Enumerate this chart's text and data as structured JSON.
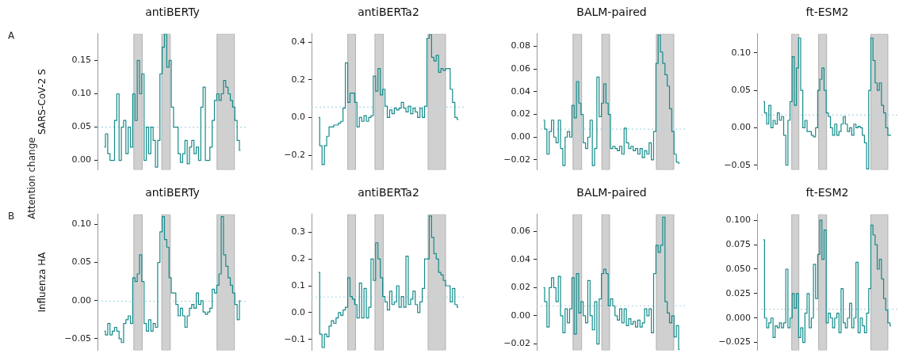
{
  "chart_data": [
    {
      "type": "step",
      "title": "antiBERTy",
      "ylabel": "SARS-CoV-2 S",
      "annotations": [
        "A",
        "Attention change"
      ],
      "color": "#138a8a",
      "tick_labels": "y",
      "grid": false,
      "ylim": [
        -0.014,
        0.19
      ],
      "yticks": [
        {
          "value": 0,
          "label": "0.00"
        },
        {
          "value": 0.05,
          "label": "0.05"
        },
        {
          "value": 0.1,
          "label": "0.10"
        },
        {
          "value": 0.15,
          "label": "0.15"
        }
      ],
      "ref_lines": [
        {
          "axis": "y",
          "value": 0.05,
          "color": "#add8e6",
          "line_style": "dotted"
        }
      ],
      "categories": [
        null,
        null,
        null,
        null,
        null,
        null,
        null,
        null,
        null,
        null,
        null,
        null,
        null,
        null,
        null,
        null,
        null,
        null,
        null,
        null,
        null,
        null,
        null,
        null,
        null,
        null,
        null,
        null,
        null,
        null,
        null,
        null,
        null,
        null,
        null,
        null,
        null,
        null,
        null,
        null,
        null,
        null,
        null,
        null,
        null,
        null,
        null,
        null,
        null,
        null,
        null,
        null,
        null,
        null,
        null,
        null,
        null,
        null,
        null,
        null,
        null
      ],
      "values": [
        0.02,
        0.04,
        0.01,
        0.0,
        0.0,
        0.06,
        0.1,
        0.0,
        0.05,
        0.06,
        0.01,
        0.05,
        0.02,
        0.1,
        0.06,
        0.15,
        0.1,
        0.13,
        0.0,
        0.05,
        0.01,
        0.05,
        0.03,
        -0.01,
        0.03,
        0.13,
        0.17,
        0.19,
        0.14,
        0.15,
        0.08,
        0.05,
        0.05,
        0.01,
        -0.003,
        0.01,
        0.03,
        -0.005,
        0.02,
        0.03,
        0.01,
        0.02,
        0.0,
        0.08,
        0.11,
        0.0,
        0.0,
        0.02,
        0.06,
        0.09,
        0.1,
        0.09,
        0.1,
        0.12,
        0.11,
        0.1,
        0.09,
        0.08,
        0.06,
        0.03,
        0.015
      ]
    },
    {
      "type": "step",
      "title": "antiBERTa2",
      "color": "#138a8a",
      "tick_labels": "y",
      "grid": false,
      "ylim": [
        -0.277,
        0.444
      ],
      "yticks": [
        {
          "value": -0.2,
          "label": "−0.2"
        },
        {
          "value": 0,
          "label": "0.0"
        },
        {
          "value": 0.2,
          "label": "0.2"
        },
        {
          "value": 0.4,
          "label": "0.4"
        }
      ],
      "ref_lines": [
        {
          "axis": "y",
          "value": 0.055,
          "color": "#add8e6",
          "line_style": "dotted"
        }
      ],
      "categories": [
        null,
        null,
        null,
        null,
        null,
        null,
        null,
        null,
        null,
        null,
        null,
        null,
        null,
        null,
        null,
        null,
        null,
        null,
        null,
        null,
        null,
        null,
        null,
        null,
        null,
        null,
        null,
        null,
        null,
        null,
        null,
        null,
        null,
        null,
        null,
        null,
        null,
        null,
        null,
        null,
        null,
        null,
        null,
        null,
        null,
        null,
        null,
        null,
        null,
        null,
        null,
        null,
        null,
        null,
        null,
        null,
        null,
        null,
        null,
        null,
        null
      ],
      "values": [
        0.0,
        -0.15,
        -0.25,
        -0.15,
        -0.1,
        -0.05,
        -0.05,
        -0.04,
        -0.04,
        -0.03,
        -0.02,
        0.05,
        0.29,
        0.08,
        0.13,
        0.13,
        0.08,
        -0.05,
        0.0,
        -0.02,
        0.01,
        -0.02,
        0.0,
        0.01,
        0.22,
        0.14,
        0.26,
        0.12,
        0.15,
        0.06,
        0.0,
        0.04,
        0.02,
        0.05,
        0.04,
        0.05,
        0.08,
        0.05,
        0.03,
        0.06,
        0.02,
        0.05,
        0.03,
        0.0,
        0.05,
        0.0,
        0.06,
        0.42,
        0.44,
        0.32,
        0.3,
        0.33,
        0.24,
        0.26,
        0.25,
        0.26,
        0.26,
        0.15,
        0.08,
        0.0,
        -0.01
      ]
    },
    {
      "type": "step",
      "title": "BALM-paired",
      "color": "#138a8a",
      "tick_labels": "y",
      "grid": false,
      "ylim": [
        -0.0287,
        0.091
      ],
      "yticks": [
        {
          "value": -0.02,
          "label": "−0.02"
        },
        {
          "value": 0,
          "label": "0.00"
        },
        {
          "value": 0.02,
          "label": "0.02"
        },
        {
          "value": 0.04,
          "label": "0.04"
        },
        {
          "value": 0.06,
          "label": "0.06"
        },
        {
          "value": 0.08,
          "label": "0.08"
        }
      ],
      "ref_lines": [
        {
          "axis": "y",
          "value": 0.007,
          "color": "#add8e6",
          "line_style": "dotted"
        }
      ],
      "categories": [
        null,
        null,
        null,
        null,
        null,
        null,
        null,
        null,
        null,
        null,
        null,
        null,
        null,
        null,
        null,
        null,
        null,
        null,
        null,
        null,
        null,
        null,
        null,
        null,
        null,
        null,
        null,
        null,
        null,
        null,
        null,
        null,
        null,
        null,
        null,
        null,
        null,
        null,
        null,
        null,
        null,
        null,
        null,
        null,
        null,
        null,
        null,
        null,
        null,
        null,
        null,
        null,
        null,
        null,
        null,
        null,
        null,
        null,
        null,
        null,
        null
      ],
      "values": [
        0.015,
        0.007,
        -0.015,
        0.005,
        0.015,
        0.0,
        -0.005,
        0.015,
        -0.01,
        -0.025,
        0.0,
        0.005,
        0.0,
        0.028,
        0.017,
        0.049,
        0.03,
        0.02,
        -0.005,
        -0.01,
        0.0,
        0.015,
        -0.025,
        -0.01,
        0.053,
        0.018,
        0.03,
        0.047,
        0.03,
        0.02,
        -0.01,
        -0.008,
        -0.01,
        -0.012,
        -0.008,
        -0.015,
        0.008,
        -0.005,
        -0.01,
        -0.008,
        -0.012,
        -0.01,
        -0.015,
        -0.01,
        -0.018,
        -0.012,
        -0.015,
        -0.005,
        -0.02,
        0.005,
        0.065,
        0.09,
        0.075,
        0.065,
        0.055,
        0.045,
        0.025,
        0.005,
        -0.015,
        -0.022,
        -0.023
      ]
    },
    {
      "type": "step",
      "title": "ft-ESM2",
      "color": "#138a8a",
      "tick_labels": "y",
      "grid": false,
      "ylim": [
        -0.056,
        0.1255
      ],
      "yticks": [
        {
          "value": -0.05,
          "label": "−0.05"
        },
        {
          "value": 0,
          "label": "0.00"
        },
        {
          "value": 0.05,
          "label": "0.05"
        },
        {
          "value": 0.1,
          "label": "0.10"
        }
      ],
      "ref_lines": [
        {
          "axis": "y",
          "value": 0.017,
          "color": "#add8e6",
          "line_style": "dotted"
        }
      ],
      "categories": [
        null,
        null,
        null,
        null,
        null,
        null,
        null,
        null,
        null,
        null,
        null,
        null,
        null,
        null,
        null,
        null,
        null,
        null,
        null,
        null,
        null,
        null,
        null,
        null,
        null,
        null,
        null,
        null,
        null,
        null,
        null,
        null,
        null,
        null,
        null,
        null,
        null,
        null,
        null,
        null,
        null,
        null,
        null,
        null,
        null,
        null,
        null,
        null,
        null,
        null,
        null,
        null,
        null,
        null,
        null,
        null,
        null,
        null,
        null,
        null,
        null
      ],
      "values": [
        0.035,
        0.02,
        0.005,
        0.03,
        0.0,
        0.01,
        0.005,
        0.02,
        0.01,
        0.015,
        -0.01,
        -0.05,
        0.01,
        0.035,
        0.095,
        0.03,
        0.08,
        0.12,
        0.05,
        0.0,
        0.01,
        -0.005,
        -0.005,
        -0.01,
        -0.012,
        0.0,
        0.05,
        0.065,
        0.08,
        0.05,
        0.02,
        0.015,
        0.0,
        -0.01,
        0.005,
        -0.01,
        -0.005,
        0.005,
        0.015,
        0.005,
        -0.005,
        0.0,
        -0.01,
        0.005,
        0.0,
        0.002,
        0.0,
        -0.01,
        -0.02,
        -0.055,
        0.05,
        0.12,
        0.09,
        0.06,
        0.05,
        0.06,
        0.03,
        0.02,
        0.0,
        -0.01,
        -0.01
      ]
    },
    {
      "type": "step",
      "title": "antiBERTy",
      "ylabel": "Influenza HA",
      "annotations": [
        "B"
      ],
      "color": "#138a8a",
      "tick_labels": "y",
      "grid": false,
      "ylim": [
        -0.065,
        0.113
      ],
      "yticks": [
        {
          "value": -0.05,
          "label": "−0.05"
        },
        {
          "value": 0,
          "label": "0.00"
        },
        {
          "value": 0.05,
          "label": "0.05"
        },
        {
          "value": 0.1,
          "label": "0.10"
        }
      ],
      "ref_lines": [
        {
          "axis": "y",
          "value": -0.001,
          "color": "#add8e6",
          "line_style": "dotted"
        }
      ],
      "categories": [
        null,
        null,
        null,
        null,
        null,
        null,
        null,
        null,
        null,
        null,
        null,
        null,
        null,
        null,
        null,
        null,
        null,
        null,
        null,
        null,
        null,
        null,
        null,
        null,
        null,
        null,
        null,
        null,
        null,
        null,
        null,
        null,
        null,
        null,
        null,
        null,
        null,
        null,
        null,
        null,
        null,
        null,
        null,
        null,
        null,
        null,
        null,
        null,
        null,
        null,
        null,
        null,
        null,
        null,
        null,
        null,
        null,
        null,
        null,
        null,
        null
      ],
      "values": [
        -0.04,
        -0.045,
        -0.03,
        -0.045,
        -0.04,
        -0.035,
        -0.04,
        -0.05,
        -0.055,
        -0.03,
        -0.025,
        -0.02,
        -0.03,
        0.03,
        0.025,
        0.035,
        0.06,
        0.025,
        -0.03,
        -0.04,
        -0.025,
        -0.04,
        -0.03,
        -0.035,
        0.05,
        0.09,
        0.11,
        0.08,
        0.07,
        0.03,
        0.01,
        0.01,
        -0.005,
        -0.02,
        -0.01,
        -0.02,
        -0.035,
        -0.02,
        -0.01,
        -0.005,
        -0.01,
        0.01,
        -0.005,
        0.0,
        -0.015,
        -0.018,
        -0.015,
        -0.01,
        0.015,
        0.01,
        0.02,
        0.035,
        0.11,
        0.06,
        0.045,
        0.03,
        0.02,
        0.01,
        -0.005,
        -0.025,
        0.0
      ]
    },
    {
      "type": "step",
      "title": "antiBERTa2",
      "color": "#138a8a",
      "tick_labels": "y",
      "grid": false,
      "ylim": [
        -0.14,
        0.366
      ],
      "yticks": [
        {
          "value": -0.1,
          "label": "−0.1"
        },
        {
          "value": 0,
          "label": "0.0"
        },
        {
          "value": 0.1,
          "label": "0.1"
        },
        {
          "value": 0.2,
          "label": "0.2"
        },
        {
          "value": 0.3,
          "label": "0.3"
        }
      ],
      "ref_lines": [
        {
          "axis": "y",
          "value": 0.058,
          "color": "#add8e6",
          "line_style": "dotted"
        }
      ],
      "categories": [
        null,
        null,
        null,
        null,
        null,
        null,
        null,
        null,
        null,
        null,
        null,
        null,
        null,
        null,
        null,
        null,
        null,
        null,
        null,
        null,
        null,
        null,
        null,
        null,
        null,
        null,
        null,
        null,
        null,
        null,
        null,
        null,
        null,
        null,
        null,
        null,
        null,
        null,
        null,
        null,
        null,
        null,
        null,
        null,
        null,
        null,
        null,
        null,
        null,
        null,
        null,
        null,
        null,
        null,
        null,
        null,
        null,
        null,
        null,
        null,
        null
      ],
      "values": [
        0.15,
        -0.08,
        -0.13,
        -0.08,
        -0.09,
        -0.05,
        -0.03,
        -0.04,
        -0.02,
        0.0,
        -0.01,
        0.01,
        0.02,
        0.13,
        0.06,
        0.05,
        0.03,
        -0.02,
        0.11,
        -0.02,
        0.09,
        -0.02,
        0.02,
        0.2,
        0.12,
        0.26,
        0.2,
        0.13,
        0.06,
        0.04,
        0.01,
        0.08,
        0.03,
        0.04,
        0.1,
        0.02,
        0.06,
        0.02,
        0.21,
        0.03,
        0.05,
        0.08,
        0.03,
        0.0,
        0.04,
        0.09,
        0.2,
        0.2,
        0.36,
        0.28,
        0.22,
        0.2,
        0.15,
        0.14,
        0.12,
        0.1,
        0.1,
        0.04,
        0.09,
        0.03,
        0.02
      ]
    },
    {
      "type": "step",
      "title": "BALM-paired",
      "color": "#138a8a",
      "tick_labels": "y",
      "grid": false,
      "ylim": [
        -0.0244,
        0.072
      ],
      "yticks": [
        {
          "value": -0.02,
          "label": "−0.02"
        },
        {
          "value": 0,
          "label": "0.00"
        },
        {
          "value": 0.02,
          "label": "0.02"
        },
        {
          "value": 0.04,
          "label": "0.04"
        },
        {
          "value": 0.06,
          "label": "0.06"
        }
      ],
      "ref_lines": [
        {
          "axis": "y",
          "value": 0.007,
          "color": "#add8e6",
          "line_style": "dotted"
        }
      ],
      "categories": [
        null,
        null,
        null,
        null,
        null,
        null,
        null,
        null,
        null,
        null,
        null,
        null,
        null,
        null,
        null,
        null,
        null,
        null,
        null,
        null,
        null,
        null,
        null,
        null,
        null,
        null,
        null,
        null,
        null,
        null,
        null,
        null,
        null,
        null,
        null,
        null,
        null,
        null,
        null,
        null,
        null,
        null,
        null,
        null,
        null,
        null,
        null,
        null,
        null,
        null,
        null,
        null,
        null,
        null,
        null,
        null,
        null,
        null,
        null,
        null,
        null
      ],
      "values": [
        0.02,
        0.01,
        -0.008,
        0.02,
        0.027,
        0.02,
        0.01,
        0.028,
        0.0,
        -0.012,
        0.005,
        -0.005,
        0.005,
        0.027,
        -0.013,
        0.03,
        0.002,
        0.01,
        0.0,
        -0.005,
        0.025,
        0.0,
        -0.01,
        0.01,
        -0.02,
        0.012,
        0.03,
        0.033,
        0.03,
        0.007,
        0.012,
        0.007,
        0.0,
        -0.003,
        0.005,
        -0.005,
        0.005,
        -0.007,
        -0.002,
        -0.006,
        -0.004,
        -0.008,
        -0.003,
        -0.008,
        -0.005,
        0.005,
        0.0,
        0.005,
        -0.012,
        0.03,
        0.05,
        0.045,
        0.05,
        0.07,
        0.01,
        0.002,
        -0.005,
        0.0,
        -0.015,
        -0.007,
        -0.024
      ]
    },
    {
      "type": "step",
      "title": "ft-ESM2",
      "color": "#138a8a",
      "tick_labels": "y",
      "grid": false,
      "ylim": [
        -0.0329,
        0.106
      ],
      "yticks": [
        {
          "value": -0.025,
          "label": "−0.025"
        },
        {
          "value": 0,
          "label": "0.000"
        },
        {
          "value": 0.025,
          "label": "0.025"
        },
        {
          "value": 0.05,
          "label": "0.050"
        },
        {
          "value": 0.075,
          "label": "0.075"
        },
        {
          "value": 0.1,
          "label": "0.100"
        }
      ],
      "ref_lines": [
        {
          "axis": "y",
          "value": 0.009,
          "color": "#add8e6",
          "line_style": "dotted"
        }
      ],
      "categories": [
        null,
        null,
        null,
        null,
        null,
        null,
        null,
        null,
        null,
        null,
        null,
        null,
        null,
        null,
        null,
        null,
        null,
        null,
        null,
        null,
        null,
        null,
        null,
        null,
        null,
        null,
        null,
        null,
        null,
        null,
        null,
        null,
        null,
        null,
        null,
        null,
        null,
        null,
        null,
        null,
        null,
        null,
        null,
        null,
        null,
        null,
        null,
        null,
        null,
        null,
        null,
        null,
        null,
        null,
        null,
        null,
        null,
        null,
        null,
        null,
        null
      ],
      "values": [
        0.08,
        0.0,
        -0.01,
        -0.005,
        0.0,
        -0.02,
        -0.008,
        -0.01,
        -0.005,
        -0.01,
        -0.005,
        0.05,
        -0.01,
        0.0,
        0.025,
        0.01,
        0.025,
        -0.02,
        -0.01,
        -0.025,
        0.005,
        0.025,
        -0.01,
        0.0,
        0.055,
        0.02,
        0.065,
        0.1,
        0.06,
        0.09,
        -0.005,
        0.005,
        0.0,
        -0.01,
        0.0,
        0.005,
        -0.015,
        0.03,
        -0.005,
        -0.01,
        0.0,
        0.015,
        -0.01,
        0.0,
        0.057,
        -0.015,
        0.0,
        -0.008,
        -0.015,
        0.005,
        0.03,
        0.095,
        0.085,
        0.075,
        0.05,
        0.06,
        0.04,
        0.02,
        0.008,
        -0.005,
        -0.008
      ]
    }
  ]
}
